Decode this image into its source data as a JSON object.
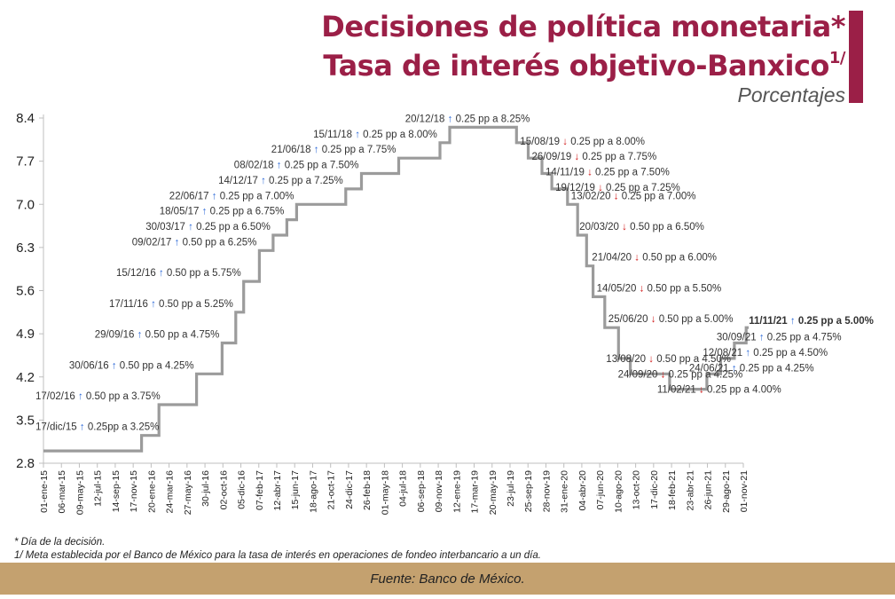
{
  "header": {
    "title_line1": "Decisiones de política monetaria*",
    "title_line2": "Tasa de interés objetivo-Banxico",
    "title_sup": "1/",
    "subtitle": "Porcentajes",
    "accent_color": "#9b1f47"
  },
  "footer": {
    "note1": "* Día de la decisión.",
    "note2": "1/ Meta establecida por el Banco de México para la tasa de interés en operaciones de fondeo interbancario a un día.",
    "source": "Fuente: Banco de México.",
    "band_color": "#c4a16f"
  },
  "chart_data": {
    "type": "line",
    "step": true,
    "title": "Decisiones de política monetaria* Tasa de interés objetivo-Banxico 1/",
    "ylabel": "Porcentajes",
    "xlabel": "",
    "ylim": [
      2.8,
      8.4
    ],
    "yticks": [
      "8.4",
      "7.7",
      "7.0",
      "6.3",
      "5.6",
      "4.9",
      "4.2",
      "3.5",
      "2.8"
    ],
    "x_range": [
      "2015-01-01",
      "2021-11-01"
    ],
    "xticks": [
      "01-ene-15",
      "06-mar-15",
      "09-may-15",
      "12-jul-15",
      "14-sep-15",
      "17-nov-15",
      "20-ene-16",
      "24-mar-16",
      "27-may-16",
      "30-jul-16",
      "02-oct-16",
      "05-dic-16",
      "07-feb-17",
      "12-abr-17",
      "15-jun-17",
      "18-ago-17",
      "21-oct-17",
      "24-dic-17",
      "26-feb-18",
      "01-may-18",
      "04-jul-18",
      "06-sep-18",
      "09-nov-18",
      "12-ene-19",
      "17-mar-19",
      "20-may-19",
      "23-jul-19",
      "25-sep-19",
      "28-nov-19",
      "31-ene-20",
      "04-abr-20",
      "07-jun-20",
      "10-ago-20",
      "13-oct-20",
      "17-dic-20",
      "18-feb-21",
      "23-abr-21",
      "26-jun-21",
      "29-ago-21",
      "01-nov-21"
    ],
    "line_color": "#9b9b9b",
    "up_color": "#2f6bd8",
    "down_color": "#d11a1a",
    "start": {
      "date": "2015-01-01",
      "value": 3.0
    },
    "end_date": "2021-11-20",
    "decisions": [
      {
        "date": "2015-12-17",
        "value": 3.25,
        "dir": "up",
        "day": "17/dic/15",
        "desc": "0.25pp a 3.25%"
      },
      {
        "date": "2016-02-17",
        "value": 3.75,
        "dir": "up",
        "day": "17/02/16",
        "desc": "0.50 pp a 3.75%"
      },
      {
        "date": "2016-06-30",
        "value": 4.25,
        "dir": "up",
        "day": "30/06/16",
        "desc": "0.50 pp a 4.25%"
      },
      {
        "date": "2016-09-29",
        "value": 4.75,
        "dir": "up",
        "day": "29/09/16",
        "desc": "0.50 pp a 4.75%"
      },
      {
        "date": "2016-11-17",
        "value": 5.25,
        "dir": "up",
        "day": "17/11/16",
        "desc": "0.50 pp a 5.25%"
      },
      {
        "date": "2016-12-15",
        "value": 5.75,
        "dir": "up",
        "day": "15/12/16",
        "desc": "0.50 pp a 5.75%"
      },
      {
        "date": "2017-02-09",
        "value": 6.25,
        "dir": "up",
        "day": "09/02/17",
        "desc": "0.50 pp a 6.25%"
      },
      {
        "date": "2017-03-30",
        "value": 6.5,
        "dir": "up",
        "day": "30/03/17",
        "desc": "0.25 pp a 6.50%"
      },
      {
        "date": "2017-05-18",
        "value": 6.75,
        "dir": "up",
        "day": "18/05/17",
        "desc": "0.25 pp a 6.75%"
      },
      {
        "date": "2017-06-22",
        "value": 7.0,
        "dir": "up",
        "day": "22/06/17",
        "desc": "0.25 pp a 7.00%"
      },
      {
        "date": "2017-12-14",
        "value": 7.25,
        "dir": "up",
        "day": "14/12/17",
        "desc": "0.25 pp a 7.25%"
      },
      {
        "date": "2018-02-08",
        "value": 7.5,
        "dir": "up",
        "day": "08/02/18",
        "desc": "0.25 pp a 7.50%"
      },
      {
        "date": "2018-06-21",
        "value": 7.75,
        "dir": "up",
        "day": "21/06/18",
        "desc": "0.25 pp a 7.75%"
      },
      {
        "date": "2018-11-15",
        "value": 8.0,
        "dir": "up",
        "day": "15/11/18",
        "desc": "0.25 pp a 8.00%"
      },
      {
        "date": "2018-12-20",
        "value": 8.25,
        "dir": "up",
        "day": "20/12/18",
        "desc": "0.25 pp a 8.25%"
      },
      {
        "date": "2019-08-15",
        "value": 8.0,
        "dir": "down",
        "day": "15/08/19",
        "desc": "0.25 pp a 8.00%"
      },
      {
        "date": "2019-09-26",
        "value": 7.75,
        "dir": "down",
        "day": "26/09/19",
        "desc": "0.25 pp a 7.75%"
      },
      {
        "date": "2019-11-14",
        "value": 7.5,
        "dir": "down",
        "day": "14/11/19",
        "desc": "0.25 pp a 7.50%"
      },
      {
        "date": "2019-12-19",
        "value": 7.25,
        "dir": "down",
        "day": "19/12/19",
        "desc": "0.25 pp a 7.25%"
      },
      {
        "date": "2020-02-13",
        "value": 7.0,
        "dir": "down",
        "day": "13/02/20",
        "desc": "0.25 pp a 7.00%"
      },
      {
        "date": "2020-03-20",
        "value": 6.5,
        "dir": "down",
        "day": "20/03/20",
        "desc": "0.50 pp a 6.50%"
      },
      {
        "date": "2020-04-21",
        "value": 6.0,
        "dir": "down",
        "day": "21/04/20",
        "desc": "0.50 pp a 6.00%"
      },
      {
        "date": "2020-05-14",
        "value": 5.5,
        "dir": "down",
        "day": "14/05/20",
        "desc": "0.50 pp a 5.50%"
      },
      {
        "date": "2020-06-25",
        "value": 5.0,
        "dir": "down",
        "day": "25/06/20",
        "desc": "0.50 pp a 5.00%"
      },
      {
        "date": "2020-08-13",
        "value": 4.5,
        "dir": "down",
        "day": "13/08/20",
        "desc": "0.50 pp a 4.50%"
      },
      {
        "date": "2020-09-24",
        "value": 4.25,
        "dir": "down",
        "day": "24/09/20",
        "desc": "0.25 pp a 4.25%"
      },
      {
        "date": "2021-02-11",
        "value": 4.0,
        "dir": "down",
        "day": "11/02/21",
        "desc": "0.25 pp a 4.00%"
      },
      {
        "date": "2021-06-24",
        "value": 4.25,
        "dir": "up",
        "day": "24/06/21",
        "desc": "0.25 pp a 4.25%"
      },
      {
        "date": "2021-08-12",
        "value": 4.5,
        "dir": "up",
        "day": "12/08/21",
        "desc": "0.25 pp a 4.50%"
      },
      {
        "date": "2021-09-30",
        "value": 4.75,
        "dir": "up",
        "day": "30/09/21",
        "desc": "0.25 pp a 4.75%"
      },
      {
        "date": "2021-11-11",
        "value": 5.0,
        "dir": "up",
        "day": "11/11/21",
        "desc": "0.25 pp a 5.00%",
        "bold": true
      }
    ]
  }
}
